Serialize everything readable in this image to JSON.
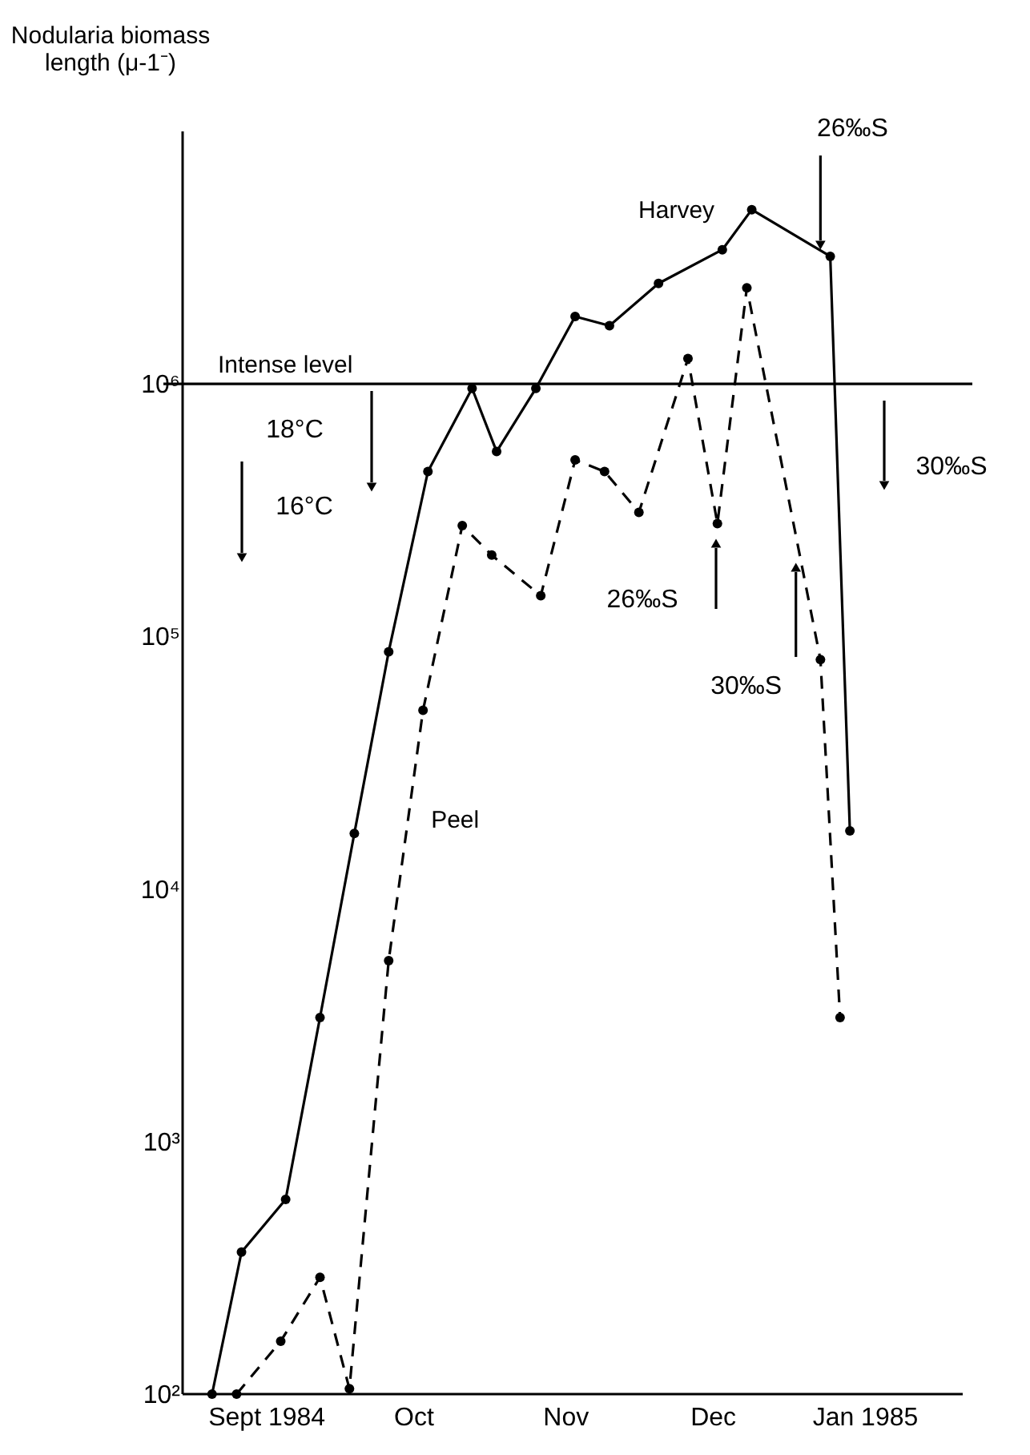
{
  "chart_data": {
    "type": "line",
    "ylabel": "Nodularia biomass\nlength (μ-1⁻)",
    "log": "y",
    "grid": false,
    "marker": "circle",
    "xlim": [
      "1984-08-15",
      "1985-01-21"
    ],
    "xticks": [
      {
        "value": "1984-09-01",
        "label": "Sept 1984"
      },
      {
        "value": "1984-10-01",
        "label": "Oct"
      },
      {
        "value": "1984-11-01",
        "label": "Nov"
      },
      {
        "value": "1984-12-01",
        "label": "Dec"
      },
      {
        "value": "1985-01-01",
        "label": "Jan 1985"
      }
    ],
    "ylim": [
      100,
      10000000
    ],
    "yticks": [
      {
        "value": 100,
        "label": "10²"
      },
      {
        "value": 1000,
        "label": "10³"
      },
      {
        "value": 10000,
        "label": "10⁴"
      },
      {
        "value": 100000,
        "label": "10⁵"
      },
      {
        "value": 1000000,
        "label": "10⁶"
      }
    ],
    "series": [
      {
        "name": "Harvey",
        "color": "#000000",
        "line_style": "solid",
        "x": [
          "1984-08-21",
          "1984-08-27",
          "1984-09-05",
          "1984-09-12",
          "1984-09-19",
          "1984-09-26",
          "1984-10-04",
          "1984-10-13",
          "1984-10-18",
          "1984-10-26",
          "1984-11-03",
          "1984-11-10",
          "1984-11-20",
          "1984-12-03",
          "1984-12-09",
          "1984-12-25",
          "1984-12-29"
        ],
        "values": [
          100,
          365,
          590,
          3100,
          16600,
          87000,
          450000,
          960000,
          540000,
          960000,
          1850000,
          1700000,
          2500000,
          3400000,
          4900000,
          3200000,
          17000
        ]
      },
      {
        "name": "Peel",
        "color": "#000000",
        "line_style": "dashed",
        "x": [
          "1984-08-26",
          "1984-09-04",
          "1984-09-12",
          "1984-09-18",
          "1984-09-26",
          "1984-10-03",
          "1984-10-11",
          "1984-10-17",
          "1984-10-27",
          "1984-11-03",
          "1984-11-09",
          "1984-11-16",
          "1984-11-26",
          "1984-12-02",
          "1984-12-08",
          "1984-12-23",
          "1984-12-27"
        ],
        "values": [
          100,
          162,
          290,
          105,
          5200,
          51000,
          275000,
          210000,
          145000,
          500000,
          450000,
          310000,
          1260000,
          280000,
          2400000,
          81000,
          3100
        ]
      }
    ],
    "ref_lines": [
      {
        "axis": "y",
        "value": 1000000,
        "label": "Intense level",
        "color": "#000000",
        "line_style": "solid"
      }
    ],
    "annotations": [
      "18°C",
      "16°C",
      {
        "text": "26‰S",
        "x": "1984-12-23",
        "y": 3700000
      },
      "30‰S",
      "26‰S",
      {
        "text": "30‰S",
        "x": "1984-12-18",
        "y": 180000
      }
    ]
  }
}
